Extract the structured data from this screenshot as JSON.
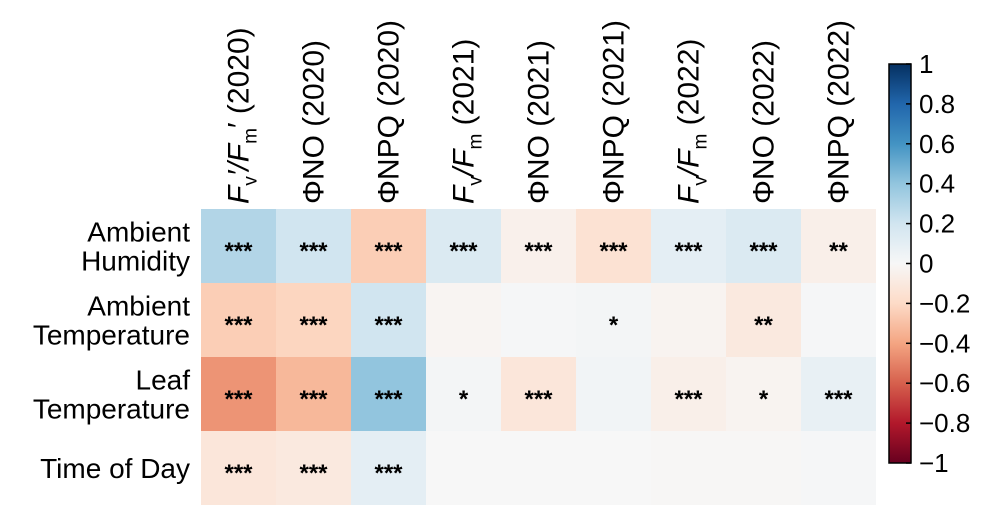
{
  "chart_data": {
    "type": "heatmap",
    "columns": [
      {
        "main": "F",
        "sub": "v",
        "mid": "′/F",
        "sub2": "m",
        "tail": "′ (2020)"
      },
      {
        "main": "ΦNO (2020)"
      },
      {
        "main": "ΦNPQ (2020)"
      },
      {
        "main": "F",
        "sub": "v",
        "mid": "/F",
        "sub2": "m",
        "tail": " (2021)"
      },
      {
        "main": "ΦNO (2021)"
      },
      {
        "main": "ΦNPQ (2021)"
      },
      {
        "main": "F",
        "sub": "v",
        "mid": "/F",
        "sub2": "m",
        "tail": " (2022)"
      },
      {
        "main": "ΦNO (2022)"
      },
      {
        "main": "ΦNPQ (2022)"
      }
    ],
    "rows": [
      [
        "Ambient",
        "Humidity"
      ],
      [
        "Ambient",
        "Temperature"
      ],
      [
        "Leaf",
        "Temperature"
      ],
      [
        "Time of Day"
      ]
    ],
    "values": [
      [
        0.3,
        0.2,
        -0.25,
        0.15,
        -0.05,
        -0.15,
        0.1,
        0.15,
        -0.06
      ],
      [
        -0.25,
        -0.22,
        0.2,
        -0.02,
        0.01,
        0.02,
        -0.03,
        -0.1,
        0.01
      ],
      [
        -0.45,
        -0.33,
        0.4,
        0.02,
        -0.12,
        0.03,
        -0.06,
        -0.03,
        0.08
      ],
      [
        -0.12,
        -0.1,
        0.1,
        0.0,
        0.0,
        0.0,
        -0.01,
        -0.01,
        0.01
      ]
    ],
    "significance": [
      [
        "***",
        "***",
        "***",
        "***",
        "***",
        "***",
        "***",
        "***",
        "**"
      ],
      [
        "***",
        "***",
        "***",
        "",
        "",
        "*",
        "",
        "**",
        ""
      ],
      [
        "***",
        "***",
        "***",
        "*",
        "***",
        "",
        "***",
        "*",
        "***"
      ],
      [
        "***",
        "***",
        "***",
        "",
        "",
        "",
        "",
        "",
        ""
      ]
    ],
    "colorbar": {
      "range": [
        -1,
        1
      ],
      "ticks": [
        "1",
        "0.8",
        "0.6",
        "0.4",
        "0.2",
        "0",
        "−0.2",
        "−0.4",
        "−0.6",
        "−0.8",
        "−1"
      ],
      "colormap": "RdBu",
      "stops": [
        "#67001f",
        "#b2182b",
        "#d6604d",
        "#f4a582",
        "#fddbc7",
        "#f7f7f7",
        "#d1e5f0",
        "#92c5de",
        "#4393c3",
        "#2166ac",
        "#053061"
      ]
    }
  }
}
